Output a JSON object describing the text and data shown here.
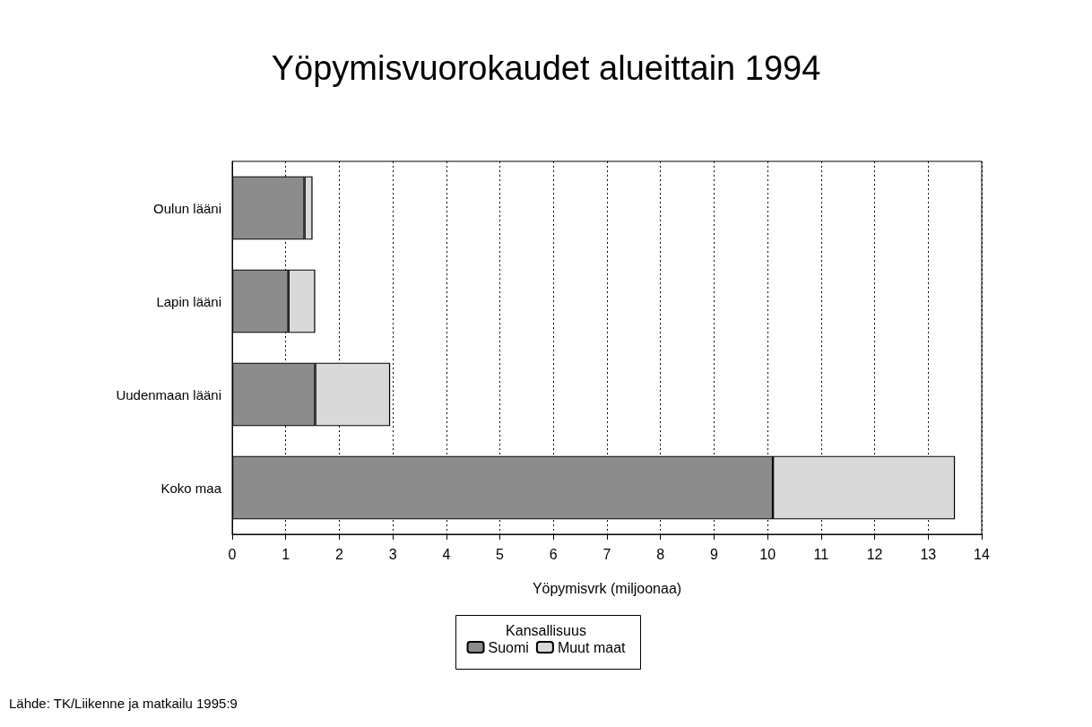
{
  "chart_data": {
    "type": "bar",
    "orientation": "horizontal",
    "stacked": true,
    "title": "Yöpymisvuorokaudet alueittain 1994",
    "xlabel": "Yöpymisvrk (miljoonaa)",
    "legend_title": "Kansallisuus",
    "categories": [
      "Oulun lääni",
      "Lapin lääni",
      "Uudenmaan lääni",
      "Koko maa"
    ],
    "series": [
      {
        "name": "Suomi",
        "color": "#8c8c8c",
        "values": [
          1.35,
          1.05,
          1.55,
          10.1
        ]
      },
      {
        "name": "Muut maat",
        "color": "#d9d9d9",
        "values": [
          0.15,
          0.5,
          1.4,
          3.4
        ]
      }
    ],
    "xlim": [
      0,
      14
    ],
    "xticks": [
      0,
      1,
      2,
      3,
      4,
      5,
      6,
      7,
      8,
      9,
      10,
      11,
      12,
      13,
      14
    ],
    "grid": "x",
    "legend": "bottom",
    "annotations": [
      "Lähde: TK/Liikenne ja matkailu 1995:9"
    ]
  }
}
